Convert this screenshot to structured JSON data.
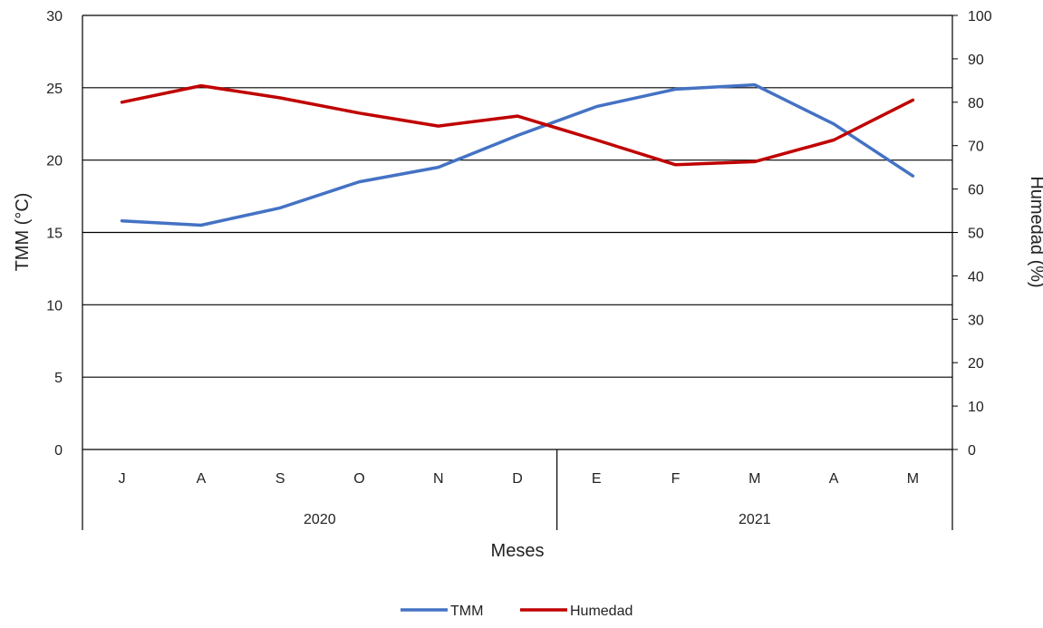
{
  "chart_data": {
    "type": "line",
    "xlabel": "Meses",
    "categories": [
      "J",
      "A",
      "S",
      "O",
      "N",
      "D",
      "E",
      "F",
      "M",
      "A",
      "M"
    ],
    "year_groups": [
      {
        "label": "2020",
        "span": 6
      },
      {
        "label": "2021",
        "span": 5
      }
    ],
    "y_left": {
      "label": "TMM (°C)",
      "range": [
        0,
        30
      ],
      "ticks": [
        "0",
        "5",
        "10",
        "15",
        "20",
        "25",
        "30"
      ]
    },
    "y_right": {
      "label": "Humedad (%)",
      "range": [
        0,
        100
      ],
      "ticks": [
        "0",
        "10",
        "20",
        "30",
        "40",
        "50",
        "60",
        "70",
        "80",
        "90",
        "100"
      ]
    },
    "grid": "horizontal",
    "legend_position": "bottom",
    "series": [
      {
        "name": "TMM",
        "axis": "left",
        "color": "#4472C4",
        "values": [
          15.8,
          15.5,
          16.7,
          18.5,
          19.5,
          21.7,
          23.7,
          24.9,
          25.2,
          22.5,
          18.9
        ]
      },
      {
        "name": "Humedad",
        "axis": "right",
        "color": "#C00000",
        "values": [
          80,
          83.8,
          81,
          77.5,
          74.5,
          76.8,
          71.3,
          65.6,
          66.3,
          71.3,
          80.5
        ]
      }
    ]
  }
}
